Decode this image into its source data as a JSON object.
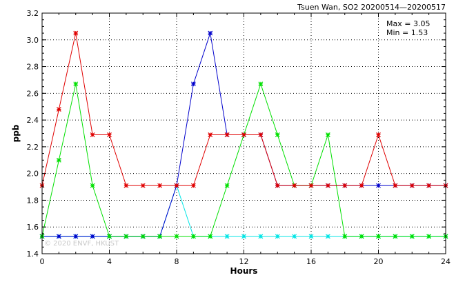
{
  "chart_data": {
    "type": "line",
    "title": "Tsuen Wan, SO2 20200514—20200517",
    "xlabel": "Hours",
    "ylabel": "ppb",
    "xlim": [
      0,
      24
    ],
    "ylim": [
      1.4,
      3.2
    ],
    "xticks": [
      0,
      4,
      8,
      12,
      16,
      20,
      24
    ],
    "yticks": [
      1.4,
      1.6,
      1.8,
      2.0,
      2.2,
      2.4,
      2.6,
      2.8,
      3.0,
      3.2
    ],
    "grid": true,
    "annotations": {
      "max": "Max = 3.05",
      "min": "Min = 1.53"
    },
    "watermark": "© 2020 ENVF, HKUST",
    "x": [
      0,
      1,
      2,
      3,
      4,
      5,
      6,
      7,
      8,
      9,
      10,
      11,
      12,
      13,
      14,
      15,
      16,
      17,
      18,
      19,
      20,
      21,
      22,
      23,
      24
    ],
    "series": [
      {
        "color": "#00e5e5",
        "values": [
          1.53,
          1.53,
          1.53,
          1.53,
          1.53,
          1.53,
          1.53,
          1.53,
          1.91,
          1.53,
          1.53,
          1.53,
          1.53,
          1.53,
          1.53,
          1.53,
          1.53,
          1.53,
          1.53,
          1.53,
          1.53,
          1.53,
          1.53,
          1.53,
          1.53
        ]
      },
      {
        "color": "#0000cc",
        "values": [
          1.53,
          1.53,
          1.53,
          1.53,
          1.53,
          1.53,
          1.53,
          1.53,
          1.91,
          2.67,
          3.05,
          2.29,
          2.29,
          2.29,
          1.91,
          1.91,
          1.91,
          1.91,
          1.91,
          1.91,
          1.91,
          1.91,
          1.91,
          1.91,
          1.91
        ]
      },
      {
        "color": "#00e000",
        "values": [
          1.53,
          2.1,
          2.67,
          1.91,
          1.53,
          1.53,
          1.53,
          1.53,
          1.53,
          1.53,
          1.53,
          1.91,
          2.29,
          2.67,
          2.29,
          1.91,
          1.91,
          2.29,
          1.53,
          1.53,
          1.53,
          1.53,
          1.53,
          1.53,
          1.53
        ]
      },
      {
        "color": "#e00000",
        "values": [
          1.91,
          2.48,
          3.05,
          2.29,
          2.29,
          1.91,
          1.91,
          1.91,
          1.91,
          1.91,
          2.29,
          2.29,
          2.29,
          2.29,
          1.91,
          1.91,
          1.91,
          1.91,
          1.91,
          1.91,
          2.29,
          1.91,
          1.91,
          1.91,
          1.91
        ]
      }
    ]
  }
}
